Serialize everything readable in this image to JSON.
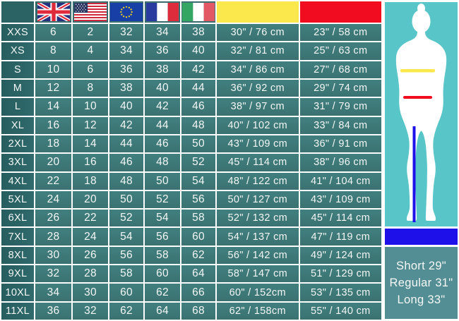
{
  "chart_data": {
    "type": "table",
    "title": "Clothing size conversion and body measurement chart",
    "columns": [
      {
        "key": "size",
        "header_icon": "blank"
      },
      {
        "key": "uk",
        "header_icon": "uk-flag"
      },
      {
        "key": "us",
        "header_icon": "usa-flag"
      },
      {
        "key": "eu",
        "header_icon": "eu-flag"
      },
      {
        "key": "fr",
        "header_icon": "france-flag"
      },
      {
        "key": "it",
        "header_icon": "italy-flag"
      },
      {
        "key": "chest",
        "header_icon": "yellow-chest-swatch"
      },
      {
        "key": "waist",
        "header_icon": "red-waist-swatch"
      }
    ],
    "rows": [
      {
        "size": "XXS",
        "uk": "6",
        "us": "2",
        "eu": "32",
        "fr": "34",
        "it": "38",
        "chest": "30\" / 76 cm",
        "waist": "23\" / 58 cm"
      },
      {
        "size": "XS",
        "uk": "8",
        "us": "4",
        "eu": "34",
        "fr": "36",
        "it": "40",
        "chest": "32\" / 81 cm",
        "waist": "25\" / 63 cm"
      },
      {
        "size": "S",
        "uk": "10",
        "us": "6",
        "eu": "36",
        "fr": "38",
        "it": "42",
        "chest": "34\" / 86 cm",
        "waist": "27\" / 68 cm"
      },
      {
        "size": "M",
        "uk": "12",
        "us": "8",
        "eu": "38",
        "fr": "40",
        "it": "44",
        "chest": "36\" / 92 cm",
        "waist": "29\" / 74 cm"
      },
      {
        "size": "L",
        "uk": "14",
        "us": "10",
        "eu": "40",
        "fr": "42",
        "it": "46",
        "chest": "38\" / 97 cm",
        "waist": "31\" / 79 cm"
      },
      {
        "size": "XL",
        "uk": "16",
        "us": "12",
        "eu": "42",
        "fr": "44",
        "it": "48",
        "chest": "40\" / 102 cm",
        "waist": "33\" / 84 cm"
      },
      {
        "size": "2XL",
        "uk": "18",
        "us": "14",
        "eu": "44",
        "fr": "46",
        "it": "50",
        "chest": "43\" / 109 cm",
        "waist": "36\" / 91 cm"
      },
      {
        "size": "3XL",
        "uk": "20",
        "us": "16",
        "eu": "46",
        "fr": "48",
        "it": "52",
        "chest": "45\" / 114 cm",
        "waist": "38\" / 96 cm"
      },
      {
        "size": "4XL",
        "uk": "22",
        "us": "18",
        "eu": "48",
        "fr": "50",
        "it": "54",
        "chest": "48\" / 122 cm",
        "waist": "41\" / 104 cm"
      },
      {
        "size": "5XL",
        "uk": "24",
        "us": "20",
        "eu": "50",
        "fr": "52",
        "it": "56",
        "chest": "50\" / 127 cm",
        "waist": "43\" / 109 cm"
      },
      {
        "size": "6XL",
        "uk": "26",
        "us": "22",
        "eu": "52",
        "fr": "54",
        "it": "58",
        "chest": "52\" / 132 cm",
        "waist": "45\" / 114 cm"
      },
      {
        "size": "7XL",
        "uk": "28",
        "us": "24",
        "eu": "54",
        "fr": "56",
        "it": "60",
        "chest": "54\" / 137 cm",
        "waist": "47\" / 119 cm"
      },
      {
        "size": "8XL",
        "uk": "30",
        "us": "26",
        "eu": "56",
        "fr": "58",
        "it": "62",
        "chest": "56\" / 142 cm",
        "waist": "49\" / 124 cm"
      },
      {
        "size": "9XL",
        "uk": "32",
        "us": "28",
        "eu": "58",
        "fr": "60",
        "it": "64",
        "chest": "58\" / 147 cm",
        "waist": "51\" / 129 cm"
      },
      {
        "size": "10XL",
        "uk": "34",
        "us": "30",
        "eu": "60",
        "fr": "62",
        "it": "66",
        "chest": "60\" / 152cm",
        "waist": "53\" / 135 cm"
      },
      {
        "size": "11XL",
        "uk": "36",
        "us": "32",
        "eu": "62",
        "fr": "64",
        "it": "68",
        "chest": "62\" / 158cm",
        "waist": "55\" / 140 cm"
      }
    ]
  },
  "figure_panel": {
    "icon": "female-body-silhouette",
    "chest_line_color": "#fbe84d",
    "waist_line_color": "#f20c1f",
    "inseam_line_color": "#1e10e8",
    "background": "#58c5c8"
  },
  "inseam_lengths": {
    "lines": [
      "Short 29\"",
      "Regular 31\"",
      "Long 33\""
    ]
  },
  "colors": {
    "cell_teal": "#3d7979",
    "label_teal": "#2b6365",
    "chest_yellow": "#fbe84d",
    "waist_red": "#f20c1f",
    "inseam_blue": "#1e10e8",
    "panel_turquoise": "#58c5c8",
    "lengths_box_teal": "#548e95",
    "grid_border": "#ffffff",
    "text": "#f3f6f5"
  }
}
